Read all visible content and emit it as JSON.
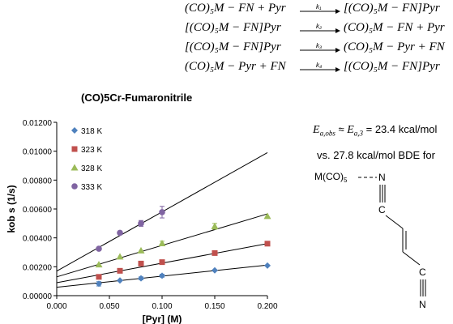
{
  "equations": [
    {
      "lhs": "(CO)₅M − FN + Pyr",
      "k": "k₁",
      "rhs": "[(CO)₅M − FN]Pyr"
    },
    {
      "lhs": "[(CO)₅M − FN]Pyr",
      "k": "k₂",
      "rhs": "(CO)₅M − FN + Pyr"
    },
    {
      "lhs": "[(CO)₅M − FN]Pyr",
      "k": "k₃",
      "rhs": "(CO)₅M − Pyr + FN"
    },
    {
      "lhs": "(CO)₅M − Pyr + FN",
      "k": "k₄",
      "rhs": "[(CO)₅M − FN]Pyr"
    }
  ],
  "notes": {
    "ea_obs": "E",
    "ea_obs_sub": "a,obs",
    "approx": " ≈ ",
    "ea3": "E",
    "ea3_sub": "a,3",
    "ea_value": " = 23.4 kcal/mol",
    "bde": "vs. 27.8 kcal/mol BDE for"
  },
  "molecule": {
    "metal": "M(CO)",
    "metal_sub": "5",
    "n_top": "N",
    "c_top": "C",
    "c_bottom": "C",
    "n_bottom": "N"
  },
  "chart_data": {
    "type": "scatter",
    "title": "(CO)5Cr-Fumaronitrile",
    "xlabel": "[Pyr] (M)",
    "ylabel": "kob s (1/s)",
    "xlim": [
      0,
      0.2
    ],
    "ylim": [
      0,
      0.012
    ],
    "xticks": [
      "0.000",
      "0.050",
      "0.100",
      "0.150",
      "0.200"
    ],
    "yticks": [
      "0.00000",
      "0.00200",
      "0.00400",
      "0.00600",
      "0.00800",
      "0.01000",
      "0.01200"
    ],
    "legend_position": "top-left",
    "grid": false,
    "series": [
      {
        "name": "318 K",
        "color": "#4f81bd",
        "marker": "diamond",
        "x": [
          0.04,
          0.06,
          0.08,
          0.1,
          0.15,
          0.2
        ],
        "y": [
          0.00082,
          0.00105,
          0.0012,
          0.00138,
          0.00175,
          0.00208
        ],
        "err": [
          0.00015,
          0,
          0.0001,
          0.0001,
          0,
          0
        ],
        "fit": [
          0.00058,
          0.0077
        ]
      },
      {
        "name": "323 K",
        "color": "#c0504d",
        "marker": "square",
        "x": [
          0.04,
          0.06,
          0.08,
          0.1,
          0.15,
          0.2
        ],
        "y": [
          0.0013,
          0.00172,
          0.00222,
          0.00232,
          0.00295,
          0.0036
        ],
        "err": [
          0,
          0,
          0,
          0,
          0,
          0
        ],
        "fit": [
          0.0009,
          0.0135
        ]
      },
      {
        "name": "328 K",
        "color": "#9bbb59",
        "marker": "triangle",
        "x": [
          0.04,
          0.06,
          0.08,
          0.1,
          0.15,
          0.2
        ],
        "y": [
          0.00215,
          0.0027,
          0.00312,
          0.00362,
          0.0048,
          0.0055
        ],
        "err": [
          0,
          0,
          0,
          0.00015,
          0.0002,
          0
        ],
        "fit": [
          0.0013,
          0.0218
        ]
      },
      {
        "name": "333 K",
        "color": "#8064a2",
        "marker": "circle",
        "x": [
          0.04,
          0.06,
          0.08,
          0.1
        ],
        "y": [
          0.00325,
          0.00435,
          0.005,
          0.00578
        ],
        "err": [
          0,
          0,
          0.0002,
          0.0004
        ],
        "fit": [
          0.0017,
          0.041
        ]
      }
    ]
  }
}
